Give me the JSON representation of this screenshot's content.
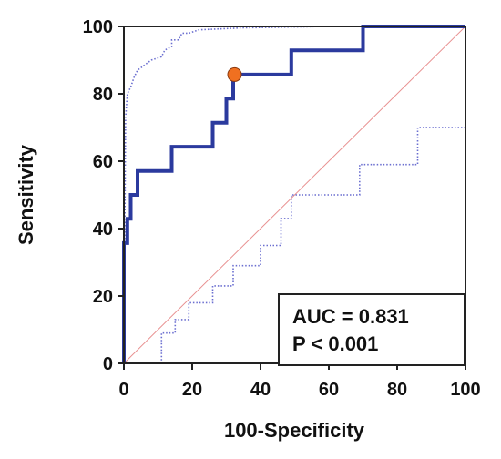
{
  "chart_data": {
    "type": "line",
    "xlabel": "100-Specificity",
    "ylabel": "Sensitivity",
    "xlim": [
      0,
      100
    ],
    "ylim": [
      0,
      100
    ],
    "x_ticks": [
      0,
      20,
      40,
      60,
      80,
      100
    ],
    "y_ticks": [
      0,
      20,
      40,
      60,
      80,
      100
    ],
    "grid": false,
    "series": [
      {
        "role": "roc-curve",
        "color": "#2b3a9e",
        "style": "solid",
        "x": [
          0,
          0,
          1,
          1,
          2,
          2,
          4,
          4,
          9,
          9,
          14,
          14,
          26,
          26,
          30,
          30,
          32,
          32,
          49,
          49,
          70,
          70,
          100
        ],
        "y": [
          0,
          35.7,
          35.7,
          42.9,
          42.9,
          50,
          50,
          57.1,
          57.1,
          57.1,
          57.1,
          64.3,
          64.3,
          71.4,
          71.4,
          78.6,
          78.6,
          85.7,
          85.7,
          92.9,
          92.9,
          100,
          100
        ]
      },
      {
        "role": "upper-confidence-bound",
        "color": "#6b6fd0",
        "style": "dotted",
        "x": [
          0,
          0.5,
          1,
          2,
          3,
          4,
          8,
          11,
          12,
          14,
          14,
          16,
          17,
          19,
          22,
          35,
          60,
          100
        ],
        "y": [
          0,
          73,
          80,
          82,
          85,
          87,
          90,
          91,
          93,
          94,
          96,
          96,
          98,
          98,
          99,
          99.6,
          100,
          100
        ]
      },
      {
        "role": "lower-confidence-bound",
        "color": "#6b6fd0",
        "style": "dotted",
        "x": [
          10,
          11,
          11,
          15,
          15,
          19,
          19,
          26,
          26,
          32,
          32,
          40,
          40,
          46,
          46,
          49,
          49,
          69,
          69,
          86,
          86,
          100,
          100
        ],
        "y": [
          0,
          0,
          9,
          9,
          13,
          13,
          18,
          18,
          23,
          23,
          29,
          29,
          35,
          35,
          43,
          43,
          50,
          50,
          59,
          59,
          70,
          70,
          100
        ]
      },
      {
        "role": "reference-diagonal",
        "color": "#e89090",
        "style": "solid",
        "x": [
          0,
          100
        ],
        "y": [
          0,
          100
        ]
      }
    ],
    "optimal_point": {
      "x": 32.4,
      "y": 85.7,
      "color": "#f07020"
    },
    "annotation": {
      "auc": "AUC = 0.831",
      "p": "P < 0.001"
    }
  }
}
